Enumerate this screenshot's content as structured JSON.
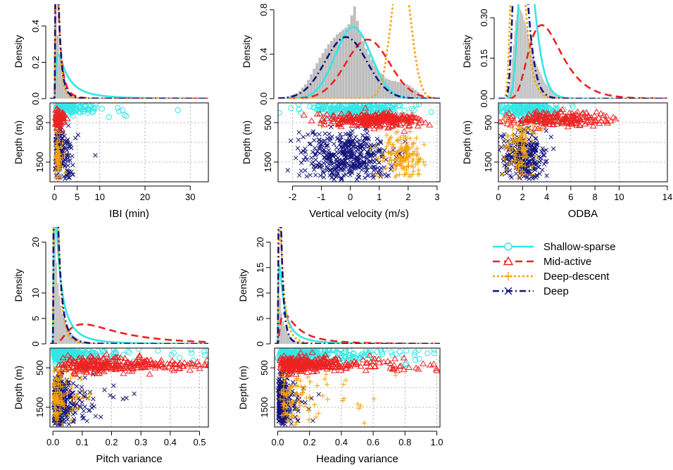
{
  "series_styles": [
    {
      "name": "Shallow-sparse",
      "color": "#33e6e6",
      "dash": "",
      "marker": "circle"
    },
    {
      "name": "Mid-active",
      "color": "#ee2222",
      "dash": "10,6",
      "marker": "triangle"
    },
    {
      "name": "Deep-descent",
      "color": "#f5a20a",
      "dash": "3,3",
      "marker": "plus"
    },
    {
      "name": "Deep",
      "color": "#13147a",
      "dash": "9,4,2,4",
      "marker": "cross"
    }
  ],
  "chart_data": [
    {
      "id": "ibi",
      "type": "density+scatter",
      "xlabel": "IBI (min)",
      "xlim": [
        -1,
        34
      ],
      "xticks": [
        0,
        5,
        10,
        20,
        30
      ],
      "density": {
        "ylabel": "Density",
        "ylim": [
          0,
          0.52
        ],
        "yticks": [
          0.0,
          0.2,
          0.4
        ],
        "hist_x0": 0,
        "hist_binwidth": 0.5,
        "hist_values": [
          0.5,
          0.35,
          0.22,
          0.13,
          0.08,
          0.05,
          0.035,
          0.025,
          0.018,
          0.012,
          0.008,
          0.005,
          0.003
        ],
        "curves": [
          {
            "series": "Shallow-sparse",
            "kind": "lognorm",
            "mu": 1.0,
            "sigma": 1.1,
            "scale": 1.0
          },
          {
            "series": "Mid-active",
            "kind": "lognorm",
            "mu": -0.2,
            "sigma": 0.9,
            "scale": 1.0
          },
          {
            "series": "Deep-descent",
            "kind": "lognorm",
            "mu": -0.4,
            "sigma": 0.7,
            "scale": 1.0
          },
          {
            "series": "Deep",
            "kind": "lognorm",
            "mu": -0.3,
            "sigma": 0.8,
            "scale": 1.0
          }
        ]
      },
      "scatter": {
        "ylabel": "Depth (m)",
        "ylim": [
          2000,
          0
        ],
        "yticks": [
          500,
          1500
        ],
        "groups": [
          {
            "series": "Shallow-sparse",
            "n": 150,
            "x_log_mu": 0.9,
            "x_log_sigma": 0.9,
            "y_mean": 150,
            "y_sd": 90
          },
          {
            "series": "Mid-active",
            "n": 90,
            "x_log_mu": -0.2,
            "x_log_sigma": 0.6,
            "y_mean": 420,
            "y_sd": 90
          },
          {
            "series": "Deep-descent",
            "n": 60,
            "x_log_mu": -0.3,
            "x_log_sigma": 0.5,
            "y_mean": 1400,
            "y_sd": 300
          },
          {
            "series": "Deep",
            "n": 160,
            "x_log_mu": 0.2,
            "x_log_sigma": 0.8,
            "y_mean": 1250,
            "y_sd": 380
          }
        ]
      }
    },
    {
      "id": "vv",
      "type": "density+scatter",
      "xlabel": "Vertical velocity (m/s)",
      "xlim": [
        -2.5,
        3.1
      ],
      "xticks": [
        -2,
        -1,
        0,
        1,
        2,
        3
      ],
      "density": {
        "ylabel": "Density",
        "ylim": [
          0,
          0.85
        ],
        "yticks": [
          0.0,
          0.4,
          0.8
        ],
        "hist_x0": -2.2,
        "hist_binwidth": 0.1,
        "hist_values": [
          0.02,
          0.03,
          0.04,
          0.05,
          0.07,
          0.1,
          0.13,
          0.17,
          0.22,
          0.27,
          0.32,
          0.37,
          0.41,
          0.45,
          0.49,
          0.52,
          0.55,
          0.58,
          0.6,
          0.62,
          0.64,
          0.67,
          0.75,
          0.83,
          0.7,
          0.6,
          0.52,
          0.45,
          0.4,
          0.35,
          0.3,
          0.26,
          0.23,
          0.2,
          0.18,
          0.17,
          0.16,
          0.16,
          0.15,
          0.15,
          0.14,
          0.13,
          0.12,
          0.1,
          0.08,
          0.06,
          0.04,
          0.02
        ],
        "curves": [
          {
            "series": "Shallow-sparse",
            "kind": "norm",
            "mean": 0.1,
            "sd": 0.62,
            "scale": 1.0
          },
          {
            "series": "Mid-active",
            "kind": "norm",
            "mean": 0.6,
            "sd": 0.75,
            "scale": 1.0
          },
          {
            "series": "Deep-descent",
            "kind": "norm",
            "mean": 1.75,
            "sd": 0.33,
            "scale": 1.0
          },
          {
            "series": "Deep",
            "kind": "norm",
            "mean": -0.15,
            "sd": 0.72,
            "scale": 1.0
          }
        ]
      },
      "scatter": {
        "ylabel": "Depth (m)",
        "ylim": [
          2000,
          0
        ],
        "yticks": [
          500,
          1500
        ],
        "groups": [
          {
            "series": "Shallow-sparse",
            "n": 220,
            "x_mean": 0.2,
            "x_sd": 0.8,
            "y_mean": 160,
            "y_sd": 100
          },
          {
            "series": "Mid-active",
            "n": 260,
            "x_mean": 0.8,
            "x_sd": 0.8,
            "y_mean": 420,
            "y_sd": 90
          },
          {
            "series": "Deep-descent",
            "n": 160,
            "x_mean": 1.8,
            "x_sd": 0.35,
            "y_mean": 1350,
            "y_sd": 280
          },
          {
            "series": "Deep",
            "n": 420,
            "x_mean": -0.2,
            "x_sd": 0.75,
            "y_mean": 1350,
            "y_sd": 330
          }
        ]
      }
    },
    {
      "id": "odba",
      "type": "density+scatter",
      "xlabel": "ODBA",
      "xlim": [
        0,
        14
      ],
      "xticks": [
        0,
        2,
        4,
        6,
        8,
        10,
        14
      ],
      "density": {
        "ylabel": "Density",
        "ylim": [
          0,
          0.35
        ],
        "yticks": [
          0.0,
          0.15,
          0.3
        ],
        "hist_x0": 0.7,
        "hist_binwidth": 0.1,
        "hist_values": [
          0.01,
          0.03,
          0.06,
          0.1,
          0.15,
          0.2,
          0.25,
          0.29,
          0.31,
          0.33,
          0.34,
          0.33,
          0.32,
          0.31,
          0.29,
          0.28,
          0.26,
          0.24,
          0.22,
          0.2,
          0.19,
          0.17,
          0.16,
          0.14,
          0.13,
          0.12,
          0.11,
          0.1,
          0.09,
          0.08,
          0.07,
          0.06,
          0.055,
          0.05,
          0.045,
          0.04,
          0.035,
          0.03,
          0.025,
          0.02,
          0.018,
          0.015,
          0.012,
          0.01,
          0.008,
          0.006
        ],
        "curves": [
          {
            "series": "Shallow-sparse",
            "kind": "lognorm",
            "mu": 0.88,
            "sigma": 0.28,
            "scale": 1.0
          },
          {
            "series": "Mid-active",
            "kind": "lognorm",
            "mu": 1.42,
            "sigma": 0.38,
            "scale": 1.0
          },
          {
            "series": "Deep-descent",
            "kind": "lognorm",
            "mu": 0.5,
            "sigma": 0.32,
            "scale": 1.0
          },
          {
            "series": "Deep",
            "kind": "lognorm",
            "mu": 0.62,
            "sigma": 0.3,
            "scale": 1.0
          }
        ]
      },
      "scatter": {
        "ylabel": "Depth (m)",
        "ylim": [
          2000,
          0
        ],
        "yticks": [
          500,
          1500
        ],
        "groups": [
          {
            "series": "Shallow-sparse",
            "n": 200,
            "x_mean": 2.6,
            "x_sd": 1.2,
            "y_mean": 170,
            "y_sd": 110
          },
          {
            "series": "Mid-active",
            "n": 180,
            "x_mean": 5.0,
            "x_sd": 2.3,
            "y_mean": 430,
            "y_sd": 90
          },
          {
            "series": "Deep-descent",
            "n": 120,
            "x_mean": 1.8,
            "x_sd": 0.7,
            "y_mean": 1100,
            "y_sd": 450
          },
          {
            "series": "Deep",
            "n": 260,
            "x_mean": 2.2,
            "x_sd": 0.9,
            "y_mean": 1300,
            "y_sd": 330
          }
        ]
      }
    },
    {
      "id": "pitch",
      "type": "density+scatter",
      "xlabel": "Pitch variance",
      "xlim": [
        -0.01,
        0.53
      ],
      "xticks": [
        0.0,
        0.1,
        0.2,
        0.3,
        0.4,
        0.5
      ],
      "density": {
        "ylabel": "Density",
        "ylim": [
          0,
          23
        ],
        "yticks": [
          0,
          5,
          10,
          20
        ],
        "hist_x0": 0,
        "hist_binwidth": 0.005,
        "hist_values": [
          20,
          24,
          16,
          12,
          9.5,
          7.5,
          6,
          5,
          4.2,
          3.5,
          3,
          2.6,
          2.2,
          1.9,
          1.6,
          1.4,
          1.2,
          1.0,
          0.8,
          0.6,
          0.4,
          0.3
        ],
        "curves": [
          {
            "series": "Shallow-sparse",
            "kind": "lognorm",
            "mu": -3.7,
            "sigma": 1.2,
            "scale": 1.0
          },
          {
            "series": "Mid-active",
            "kind": "lognorm",
            "mu": -1.7,
            "sigma": 0.75,
            "scale": 1.0
          },
          {
            "series": "Deep-descent",
            "kind": "lognorm",
            "mu": -4.4,
            "sigma": 0.8,
            "scale": 1.0
          },
          {
            "series": "Deep",
            "kind": "lognorm",
            "mu": -4.3,
            "sigma": 0.9,
            "scale": 1.0
          }
        ]
      },
      "scatter": {
        "ylabel": "Depth (m)",
        "ylim": [
          2000,
          0
        ],
        "yticks": [
          500,
          1500
        ],
        "groups": [
          {
            "series": "Shallow-sparse",
            "n": 260,
            "x_log_mu": -3.0,
            "x_log_sigma": 1.3,
            "y_mean": 160,
            "y_sd": 100
          },
          {
            "series": "Mid-active",
            "n": 300,
            "x_log_mu": -1.6,
            "x_log_sigma": 0.8,
            "y_mean": 420,
            "y_sd": 90
          },
          {
            "series": "Deep-descent",
            "n": 120,
            "x_log_mu": -3.8,
            "x_log_sigma": 0.9,
            "y_mean": 1200,
            "y_sd": 400
          },
          {
            "series": "Deep",
            "n": 360,
            "x_log_mu": -3.6,
            "x_log_sigma": 0.9,
            "y_mean": 1350,
            "y_sd": 330
          }
        ]
      }
    },
    {
      "id": "heading",
      "type": "density+scatter",
      "xlabel": "Heading variance",
      "xlim": [
        -0.02,
        1.02
      ],
      "xticks": [
        0.0,
        0.2,
        0.4,
        0.6,
        0.8,
        1.0
      ],
      "density": {
        "ylabel": "Density",
        "ylim": [
          0,
          23
        ],
        "yticks": [
          0,
          5,
          10,
          15,
          20
        ],
        "hist_x0": 0,
        "hist_binwidth": 0.01,
        "hist_values": [
          14,
          9,
          6,
          4.5,
          3.5,
          2.6,
          2,
          1.6,
          1.3,
          1.0,
          0.8,
          0.6,
          0.5,
          0.4,
          0.3,
          0.25,
          0.2,
          0.15
        ],
        "curves": [
          {
            "series": "Shallow-sparse",
            "kind": "lognorm",
            "mu": -3.1,
            "sigma": 1.25,
            "scale": 1.0
          },
          {
            "series": "Mid-active",
            "kind": "lognorm",
            "mu": -2.2,
            "sigma": 1.0,
            "scale": 1.0
          },
          {
            "series": "Deep-descent",
            "kind": "lognorm",
            "mu": -3.6,
            "sigma": 0.9,
            "scale": 1.0
          },
          {
            "series": "Deep",
            "kind": "lognorm",
            "mu": -4.0,
            "sigma": 0.8,
            "scale": 1.0
          }
        ]
      },
      "scatter": {
        "ylabel": "Depth (m)",
        "ylim": [
          2000,
          0
        ],
        "yticks": [
          500,
          1500
        ],
        "groups": [
          {
            "series": "Shallow-sparse",
            "n": 300,
            "x_log_mu": -1.8,
            "x_log_sigma": 1.1,
            "y_mean": 170,
            "y_sd": 110
          },
          {
            "series": "Mid-active",
            "n": 320,
            "x_log_mu": -1.6,
            "x_log_sigma": 1.0,
            "y_mean": 420,
            "y_sd": 90
          },
          {
            "series": "Deep-descent",
            "n": 110,
            "x_log_mu": -2.2,
            "x_log_sigma": 0.9,
            "y_mean": 1250,
            "y_sd": 350
          },
          {
            "series": "Deep",
            "n": 360,
            "x_log_mu": -3.6,
            "x_log_sigma": 0.8,
            "y_mean": 1350,
            "y_sd": 320
          }
        ]
      }
    }
  ],
  "legend": {
    "position": "right",
    "entries": [
      "Shallow-sparse",
      "Mid-active",
      "Deep-descent",
      "Deep"
    ]
  }
}
